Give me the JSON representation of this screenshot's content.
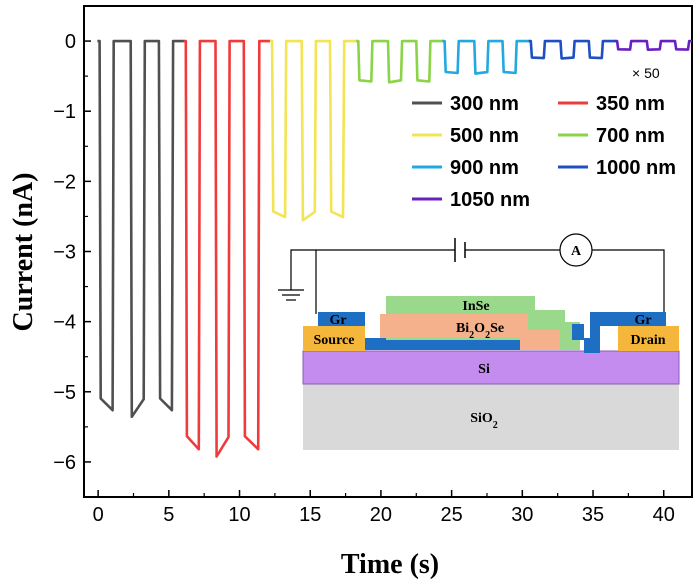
{
  "chart_data": {
    "type": "line",
    "xlabel": "Time (s)",
    "ylabel": "Current (nA)",
    "xlim": [
      -1,
      42
    ],
    "ylim": [
      -6.5,
      0.5
    ],
    "xticks": [
      "0",
      "5",
      "10",
      "15",
      "20",
      "25",
      "30",
      "35",
      "40"
    ],
    "yticks": [
      "0",
      "-1",
      "-2",
      "-3",
      "-4",
      "-5",
      "-6"
    ],
    "annotation": "× 50",
    "legend_position": "top-right",
    "series": [
      {
        "name": "300 nm",
        "color": "#505050",
        "on_level": -5.2,
        "cycles": [
          [
            0.1,
            1.1
          ],
          [
            2.3,
            3.3
          ],
          [
            4.3,
            5.3
          ]
        ]
      },
      {
        "name": "350 nm",
        "color": "#ef3b3b",
        "on_level": -5.75,
        "cycles": [
          [
            6.2,
            7.2
          ],
          [
            8.3,
            9.3
          ],
          [
            10.3,
            11.4
          ]
        ]
      },
      {
        "name": "500 nm",
        "color": "#f2e454",
        "on_level": -2.48,
        "cycles": [
          [
            12.3,
            13.3
          ],
          [
            14.4,
            15.4
          ],
          [
            16.4,
            17.4
          ]
        ]
      },
      {
        "name": "700 nm",
        "color": "#8bd347",
        "on_level": -0.57,
        "cycles": [
          [
            18.4,
            19.4
          ],
          [
            20.5,
            21.5
          ],
          [
            22.5,
            23.5
          ]
        ]
      },
      {
        "name": "900 nm",
        "color": "#23a8e0",
        "on_level": -0.45,
        "cycles": [
          [
            24.5,
            25.5
          ],
          [
            26.6,
            27.6
          ],
          [
            28.6,
            29.6
          ]
        ]
      },
      {
        "name": "1000 nm",
        "color": "#1f4fc0",
        "on_level": -0.24,
        "cycles": [
          [
            30.6,
            31.6
          ],
          [
            32.7,
            33.7
          ],
          [
            34.7,
            35.7
          ]
        ]
      },
      {
        "name": "1050 nm",
        "color": "#6a1fc0",
        "on_level": -0.12,
        "cycles": [
          [
            36.7,
            37.7
          ],
          [
            38.8,
            39.8
          ],
          [
            40.8,
            41.8
          ]
        ]
      }
    ]
  },
  "inset": {
    "layers": {
      "gr_left": "Gr",
      "gr_right": "Gr",
      "inse": "InSe",
      "bi2o2se_main": "Bi",
      "bi2o2se_sub1": "2",
      "bi2o2se_mid": "O",
      "bi2o2se_sub2": "2",
      "bi2o2se_end": "Se",
      "source": "Source",
      "drain": "Drain",
      "si": "Si",
      "sio2_main": "SiO",
      "sio2_sub": "2",
      "ammeter": "A"
    },
    "colors": {
      "gr": "#1e6fc4",
      "inse": "#9ad88c",
      "bi2o2se": "#f5b08c",
      "electrode": "#f4b73c",
      "si": "#c58cf0",
      "sio2": "#d9d9d9"
    }
  }
}
